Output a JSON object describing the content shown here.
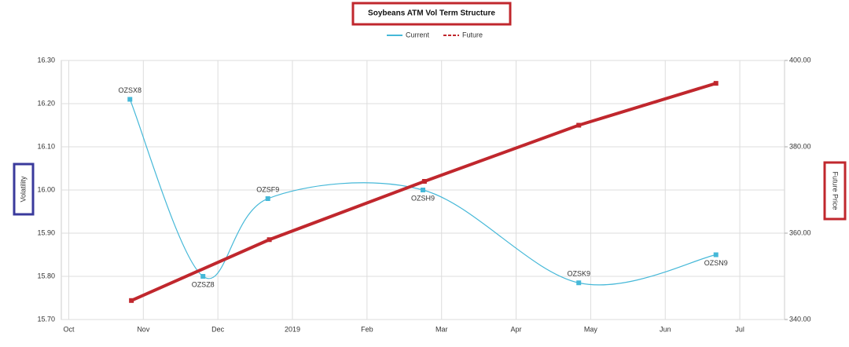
{
  "chart_data": {
    "type": "line",
    "title": "Soybeans ATM Vol Term Structure",
    "y_label": "Volatility",
    "y2_label": "Future Price",
    "xlim": [
      -0.1,
      9.6
    ],
    "xticks": [
      {
        "value": 0,
        "label": "Oct"
      },
      {
        "value": 1,
        "label": "Nov"
      },
      {
        "value": 2,
        "label": "Dec"
      },
      {
        "value": 3,
        "label": "2019"
      },
      {
        "value": 4,
        "label": "Feb"
      },
      {
        "value": 5,
        "label": "Mar"
      },
      {
        "value": 6,
        "label": "Apr"
      },
      {
        "value": 7,
        "label": "May"
      },
      {
        "value": 8,
        "label": "Jun"
      },
      {
        "value": 9,
        "label": "Jul"
      }
    ],
    "ylim": [
      15.7,
      16.3
    ],
    "yticks": [
      {
        "value": 15.7,
        "label": "15.70"
      },
      {
        "value": 15.8,
        "label": "15.80"
      },
      {
        "value": 15.9,
        "label": "15.90"
      },
      {
        "value": 16.0,
        "label": "16.00"
      },
      {
        "value": 16.1,
        "label": "16.10"
      },
      {
        "value": 16.2,
        "label": "16.20"
      },
      {
        "value": 16.3,
        "label": "16.30"
      }
    ],
    "y2lim": [
      340,
      400
    ],
    "y2ticks": [
      {
        "value": 340,
        "label": "340.00"
      },
      {
        "value": 360,
        "label": "360.00"
      },
      {
        "value": 380,
        "label": "380.00"
      },
      {
        "value": 400,
        "label": "400.00"
      }
    ],
    "grid": true,
    "series": [
      {
        "name": "Current",
        "color": "#45b8d8",
        "x": [
          0.82,
          1.8,
          2.67,
          4.75,
          6.84,
          8.68
        ],
        "values": [
          16.21,
          15.8,
          15.98,
          16.0,
          15.785,
          15.85
        ],
        "point_labels": [
          "OZSX8",
          "OZSZ8",
          "OZSF9",
          "OZSH9",
          "OZSK9",
          "OZSN9"
        ]
      },
      {
        "name": "Future",
        "color": "#c0272d",
        "axis": "y2",
        "x": [
          0.84,
          2.69,
          4.77,
          6.84,
          8.68
        ],
        "values": [
          344.4,
          358.5,
          372,
          385,
          394.7
        ]
      }
    ]
  }
}
